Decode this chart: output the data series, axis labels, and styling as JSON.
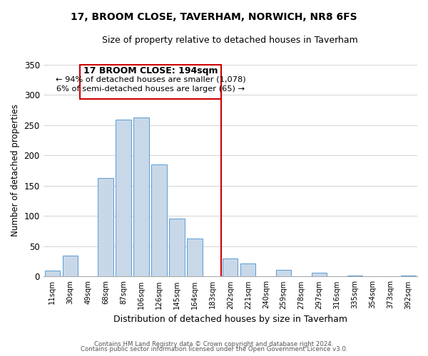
{
  "title": "17, BROOM CLOSE, TAVERHAM, NORWICH, NR8 6FS",
  "subtitle": "Size of property relative to detached houses in Taverham",
  "xlabel": "Distribution of detached houses by size in Taverham",
  "ylabel": "Number of detached properties",
  "bin_labels": [
    "11sqm",
    "30sqm",
    "49sqm",
    "68sqm",
    "87sqm",
    "106sqm",
    "126sqm",
    "145sqm",
    "164sqm",
    "183sqm",
    "202sqm",
    "221sqm",
    "240sqm",
    "259sqm",
    "278sqm",
    "297sqm",
    "316sqm",
    "335sqm",
    "354sqm",
    "373sqm",
    "392sqm"
  ],
  "bar_values": [
    10,
    35,
    0,
    163,
    259,
    262,
    185,
    96,
    63,
    0,
    30,
    22,
    0,
    11,
    0,
    6,
    0,
    2,
    0,
    0,
    2
  ],
  "bar_color": "#c8d8e8",
  "bar_edge_color": "#5b9bd5",
  "property_line_x": 9.5,
  "annotation_title": "17 BROOM CLOSE: 194sqm",
  "annotation_line1": "← 94% of detached houses are smaller (1,078)",
  "annotation_line2": "6% of semi-detached houses are larger (65) →",
  "annotation_box_color": "#ffffff",
  "annotation_box_edge": "#cc0000",
  "vline_color": "#cc0000",
  "ylim": [
    0,
    350
  ],
  "yticks": [
    0,
    50,
    100,
    150,
    200,
    250,
    300,
    350
  ],
  "footer1": "Contains HM Land Registry data © Crown copyright and database right 2024.",
  "footer2": "Contains public sector information licensed under the Open Government Licence v3.0."
}
